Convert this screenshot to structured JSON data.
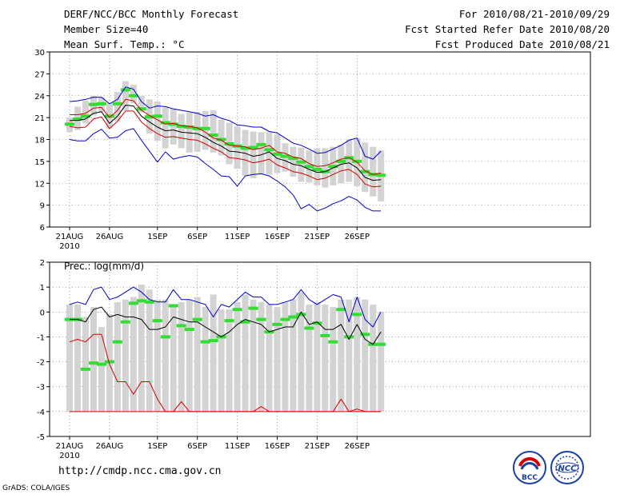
{
  "header": {
    "title": "DERF/NCC/BCC Monthly Forecast",
    "member_size": "Member Size=40",
    "variable": "Mean Surf. Temp.: °C",
    "period": "For 2010/08/21-2010/09/29",
    "started": "Fcst Started Refer Date 2010/08/20",
    "produced": "Fcst Produced Date 2010/08/21"
  },
  "footer": {
    "url": "http://cmdp.ncc.cma.gov.cn",
    "credit": "GrADS: COLA/IGES",
    "logo_bcc": "BCC",
    "logo_ncc": "NCC"
  },
  "colors": {
    "box": "#d3d3d3",
    "median": "#33dd33",
    "mean": "#000000",
    "red": "#d40000",
    "blue": "#0000cc"
  },
  "chart_data": [
    {
      "type": "line",
      "title": "Mean Surf. Temp.: °C",
      "ylabel": "°C",
      "ylim": [
        6,
        30
      ],
      "yticks": [
        6,
        9,
        12,
        15,
        18,
        21,
        24,
        27,
        30
      ],
      "xticks": [
        {
          "day": 1,
          "label": "21AUG"
        },
        {
          "day": 6,
          "label": "26AUG"
        },
        {
          "day": 12,
          "label": "1SEP"
        },
        {
          "day": 17,
          "label": "6SEP"
        },
        {
          "day": 22,
          "label": "11SEP"
        },
        {
          "day": 27,
          "label": "16SEP"
        },
        {
          "day": 32,
          "label": "21SEP"
        },
        {
          "day": 37,
          "label": "26SEP"
        }
      ],
      "year_label": "2010",
      "days": 40,
      "box_low": [
        19.0,
        19.3,
        20.2,
        21.3,
        21.8,
        19.5,
        20.5,
        22.0,
        23.0,
        21.7,
        18.8,
        17.8,
        16.8,
        17.3,
        16.8,
        16.2,
        16.3,
        16.6,
        16.2,
        15.8,
        14.6,
        14.0,
        13.0,
        12.7,
        13.2,
        13.2,
        13.4,
        13.6,
        12.9,
        12.2,
        12.1,
        11.7,
        11.4,
        11.7,
        12.0,
        12.2,
        11.6,
        10.8,
        10.2,
        9.5
      ],
      "box_high": [
        21.0,
        22.5,
        23.3,
        24.0,
        23.8,
        23.0,
        24.5,
        26.0,
        25.5,
        24.0,
        23.5,
        23.2,
        22.4,
        22.2,
        21.5,
        21.7,
        21.8,
        21.9,
        22.0,
        20.7,
        20.3,
        19.8,
        19.3,
        19.1,
        19.0,
        19.0,
        18.7,
        17.5,
        17.0,
        16.9,
        16.5,
        16.8,
        16.8,
        17.0,
        17.3,
        18.0,
        18.2,
        17.6,
        17.0,
        16.5
      ],
      "median": [
        20.1,
        20.8,
        21.2,
        22.8,
        22.9,
        21.2,
        22.9,
        24.8,
        24.0,
        22.2,
        21.1,
        21.2,
        20.3,
        20.1,
        19.8,
        19.7,
        19.5,
        19.5,
        18.6,
        18.0,
        17.4,
        17.1,
        16.8,
        16.9,
        17.3,
        16.6,
        16.0,
        15.7,
        15.4,
        14.9,
        14.3,
        13.9,
        13.6,
        14.3,
        15.0,
        15.5,
        15.0,
        13.6,
        13.2,
        13.1
      ],
      "series": [
        {
          "name": "upper-blue",
          "color": "blue",
          "values": [
            23.2,
            23.3,
            23.5,
            23.8,
            23.8,
            22.9,
            23.5,
            25.2,
            24.9,
            23.2,
            22.3,
            22.6,
            22.5,
            22.2,
            22.0,
            21.8,
            21.6,
            21.2,
            21.4,
            20.9,
            20.6,
            20.0,
            19.9,
            19.7,
            19.7,
            19.1,
            18.9,
            18.2,
            17.5,
            17.2,
            16.7,
            16.1,
            16.2,
            16.7,
            17.2,
            17.9,
            18.2,
            15.7,
            15.3,
            16.4
          ]
        },
        {
          "name": "upper-red",
          "color": "red",
          "values": [
            21.4,
            21.4,
            21.6,
            22.3,
            22.4,
            21.0,
            22.0,
            23.5,
            23.3,
            22.0,
            21.3,
            20.7,
            20.1,
            20.2,
            19.9,
            19.8,
            19.6,
            19.0,
            18.2,
            17.9,
            17.2,
            17.1,
            17.0,
            16.6,
            16.8,
            17.2,
            16.3,
            16.1,
            15.6,
            15.4,
            14.7,
            14.3,
            14.4,
            14.8,
            15.3,
            15.5,
            14.9,
            13.7,
            13.2,
            13.4
          ]
        },
        {
          "name": "ensemble-mean",
          "color": "mean",
          "values": [
            20.6,
            20.6,
            20.8,
            21.6,
            21.8,
            20.2,
            21.2,
            22.7,
            22.6,
            21.2,
            20.4,
            19.7,
            19.2,
            19.3,
            19.0,
            18.9,
            18.8,
            18.3,
            17.6,
            17.1,
            16.4,
            16.3,
            16.1,
            15.7,
            15.9,
            16.3,
            15.4,
            15.1,
            14.6,
            14.4,
            13.9,
            13.5,
            13.6,
            14.1,
            14.6,
            14.8,
            14.1,
            12.8,
            12.4,
            12.5
          ]
        },
        {
          "name": "lower-red",
          "color": "red",
          "values": [
            19.8,
            19.6,
            19.7,
            20.8,
            21.1,
            19.5,
            20.5,
            21.9,
            21.9,
            20.4,
            19.5,
            18.8,
            18.3,
            18.4,
            18.2,
            18.0,
            17.9,
            17.4,
            16.8,
            16.3,
            15.5,
            15.4,
            15.2,
            14.8,
            15.0,
            15.3,
            14.5,
            14.1,
            13.6,
            13.4,
            13.0,
            12.5,
            12.7,
            13.2,
            13.7,
            13.9,
            13.2,
            11.9,
            11.5,
            11.6
          ]
        },
        {
          "name": "lower-blue",
          "color": "blue",
          "values": [
            18.0,
            17.8,
            17.8,
            18.8,
            19.4,
            18.2,
            18.3,
            19.2,
            19.5,
            17.9,
            16.4,
            14.9,
            16.3,
            15.3,
            15.6,
            15.8,
            15.6,
            14.7,
            13.9,
            13.0,
            12.9,
            11.6,
            13.0,
            13.2,
            13.3,
            13.0,
            12.3,
            11.5,
            10.4,
            8.5,
            9.1,
            8.2,
            8.6,
            9.2,
            9.6,
            10.2,
            9.7,
            8.7,
            8.2,
            8.2
          ]
        }
      ]
    },
    {
      "type": "line",
      "title": "Prec.: log(mm/d)",
      "ylabel": "log(mm/d)",
      "ylim": [
        -5,
        2
      ],
      "yticks": [
        -5,
        -4,
        -3,
        -2,
        -1,
        0,
        1,
        2
      ],
      "xticks": [
        {
          "day": 1,
          "label": "21AUG"
        },
        {
          "day": 6,
          "label": "26AUG"
        },
        {
          "day": 12,
          "label": "1SEP"
        },
        {
          "day": 17,
          "label": "6SEP"
        },
        {
          "day": 22,
          "label": "11SEP"
        },
        {
          "day": 27,
          "label": "16SEP"
        },
        {
          "day": 32,
          "label": "21SEP"
        },
        {
          "day": 37,
          "label": "26SEP"
        }
      ],
      "year_label": "2010",
      "days": 40,
      "box_low": [
        -4,
        -4,
        -4,
        -4,
        -4,
        -4,
        -4,
        -4,
        -4,
        -4,
        -4,
        -4,
        -4,
        -4,
        -4,
        -4,
        -4,
        -4,
        -4,
        -4,
        -4,
        -4,
        -4,
        -4,
        -4,
        -4,
        -4,
        -4,
        -4,
        -4,
        -4,
        -4,
        -4,
        -4,
        -4,
        -4,
        -4,
        -4,
        -4,
        -4
      ],
      "box_high": [
        0.3,
        0.3,
        -0.2,
        0.2,
        -0.6,
        -0.1,
        0.4,
        0.5,
        0.6,
        1.1,
        0.9,
        0.5,
        0.5,
        0.2,
        0.4,
        0.5,
        0.6,
        0.2,
        0.7,
        0.1,
        0.1,
        0.4,
        0.7,
        0.5,
        0.4,
        0.3,
        0.2,
        0.4,
        0.5,
        0.8,
        0.3,
        0.4,
        0.3,
        0.2,
        0.5,
        0.5,
        0.6,
        0.5,
        0.3,
        0.0
      ],
      "median": [
        -0.3,
        -0.3,
        -2.3,
        -2.05,
        -2.1,
        -2.0,
        -1.2,
        -0.4,
        0.35,
        0.45,
        0.4,
        -0.35,
        -1.0,
        0.25,
        -0.55,
        -0.7,
        -0.3,
        -1.2,
        -1.15,
        -1.0,
        -0.35,
        0.1,
        -0.4,
        0.15,
        -0.3,
        -0.8,
        -0.5,
        -0.3,
        -0.2,
        -0.1,
        -0.65,
        -0.45,
        -0.95,
        -1.2,
        0.1,
        -1.0,
        -0.1,
        -0.9,
        -1.3,
        -1.3
      ],
      "series": [
        {
          "name": "upper-blue",
          "color": "blue",
          "values": [
            0.3,
            0.4,
            0.3,
            0.9,
            1.0,
            0.5,
            0.6,
            0.8,
            1.0,
            0.8,
            0.5,
            0.4,
            0.4,
            0.9,
            0.5,
            0.5,
            0.4,
            0.3,
            -0.2,
            0.3,
            0.2,
            0.5,
            0.8,
            0.6,
            0.6,
            0.3,
            0.3,
            0.4,
            0.5,
            0.9,
            0.5,
            0.3,
            0.5,
            0.7,
            0.6,
            -0.4,
            0.6,
            -0.3,
            -0.6,
            0.0
          ]
        },
        {
          "name": "ensemble-mean",
          "color": "mean",
          "values": [
            -0.3,
            -0.3,
            -0.4,
            0.1,
            0.2,
            -0.2,
            -0.1,
            -0.2,
            -0.2,
            -0.3,
            -0.7,
            -0.7,
            -0.6,
            -0.2,
            -0.3,
            -0.4,
            -0.4,
            -0.6,
            -0.8,
            -1.0,
            -0.8,
            -0.5,
            -0.3,
            -0.4,
            -0.5,
            -0.8,
            -0.7,
            -0.6,
            -0.6,
            0.0,
            -0.5,
            -0.4,
            -0.7,
            -0.7,
            -0.5,
            -1.1,
            -0.5,
            -1.1,
            -1.3,
            -0.8
          ]
        },
        {
          "name": "upper-red",
          "color": "red",
          "values": [
            -1.2,
            -1.1,
            -1.2,
            -0.9,
            -0.9,
            -2.1,
            -2.8,
            -2.8,
            -3.3,
            -2.8,
            -2.8,
            -3.5,
            -4.0,
            -4.0,
            -3.6,
            -4.0,
            -4.0,
            -4.0,
            -4.0,
            -4.0,
            -4.0,
            -4.0,
            -4.0,
            -4.0,
            -3.8,
            -4.0,
            -4.0,
            -4.0,
            -4.0,
            -4.0,
            -4.0,
            -4.0,
            -4.0,
            -4.0,
            -3.5,
            -4.0,
            -3.9,
            -4.0,
            -4.0,
            -4.0
          ]
        },
        {
          "name": "lower-red",
          "color": "red",
          "values": [
            -4,
            -4,
            -4,
            -4,
            -4,
            -4,
            -4,
            -4,
            -4,
            -4,
            -4,
            -4,
            -4,
            -4,
            -4,
            -4,
            -4,
            -4,
            -4,
            -4,
            -4,
            -4,
            -4,
            -4,
            -4,
            -4,
            -4,
            -4,
            -4,
            -4,
            -4,
            -4,
            -4,
            -4,
            -4,
            -4,
            -4,
            -4,
            -4,
            -4
          ]
        }
      ]
    }
  ]
}
